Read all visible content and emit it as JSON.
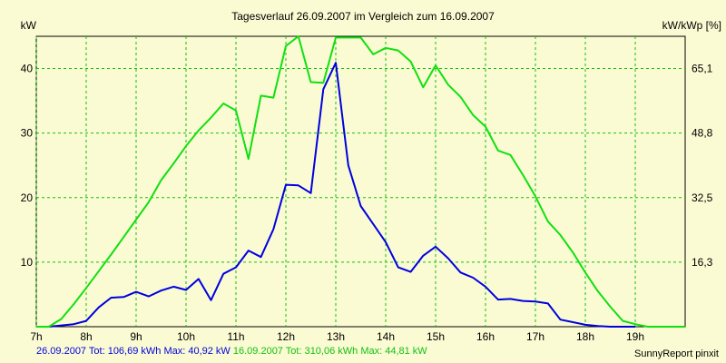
{
  "chart_data": {
    "type": "line",
    "title": "Tagesverlauf 26.09.2007 im Vergleich zum 16.09.2007",
    "ylabel_left": "kW",
    "ylabel_right": "kW/kWp [%]",
    "x_unit": "h",
    "xlim": [
      7,
      20
    ],
    "ylim": [
      0,
      45
    ],
    "x_ticks": [
      "7h",
      "8h",
      "9h",
      "10h",
      "11h",
      "12h",
      "13h",
      "14h",
      "15h",
      "16h",
      "17h",
      "18h",
      "19h"
    ],
    "y_ticks_left": [
      "10",
      "20",
      "30",
      "40"
    ],
    "y_ticks_right": [
      "16,3",
      "32,5",
      "48,8",
      "65,1"
    ],
    "grid": true,
    "series": [
      {
        "name": "26.09.2007",
        "color": "#0000e0",
        "x": [
          7.0,
          7.25,
          7.5,
          7.75,
          8.0,
          8.25,
          8.5,
          8.75,
          9.0,
          9.25,
          9.5,
          9.75,
          10.0,
          10.25,
          10.5,
          10.75,
          11.0,
          11.25,
          11.5,
          11.75,
          12.0,
          12.25,
          12.5,
          12.75,
          13.0,
          13.25,
          13.5,
          13.75,
          14.0,
          14.25,
          14.5,
          14.75,
          15.0,
          15.25,
          15.5,
          15.75,
          16.0,
          16.25,
          16.5,
          16.75,
          17.0,
          17.25,
          17.5,
          17.75,
          18.0,
          18.25,
          18.5,
          18.75,
          19.0
        ],
        "values": [
          0.0,
          0.0,
          0.2,
          0.4,
          0.9,
          3.0,
          4.5,
          4.6,
          5.4,
          4.7,
          5.6,
          6.2,
          5.7,
          7.4,
          4.1,
          8.2,
          9.2,
          11.8,
          10.8,
          15.1,
          22.0,
          21.9,
          20.7,
          36.8,
          40.9,
          25.0,
          18.7,
          15.9,
          13.1,
          9.2,
          8.5,
          11.0,
          12.4,
          10.6,
          8.4,
          7.6,
          6.2,
          4.2,
          4.3,
          4.0,
          3.9,
          3.6,
          1.1,
          0.7,
          0.3,
          0.1,
          0.0,
          0.0,
          0.0
        ]
      },
      {
        "name": "16.09.2007",
        "color": "#10e010",
        "x": [
          7.0,
          7.25,
          7.5,
          7.75,
          8.0,
          8.25,
          8.5,
          8.75,
          9.0,
          9.25,
          9.5,
          9.75,
          10.0,
          10.25,
          10.5,
          10.75,
          11.0,
          11.25,
          11.5,
          11.75,
          12.0,
          12.25,
          12.5,
          12.75,
          13.0,
          13.25,
          13.5,
          13.75,
          14.0,
          14.25,
          14.5,
          14.75,
          15.0,
          15.25,
          15.5,
          15.75,
          16.0,
          16.25,
          16.5,
          16.75,
          17.0,
          17.25,
          17.5,
          17.75,
          18.0,
          18.25,
          18.5,
          18.75,
          19.0,
          19.25,
          19.5,
          19.75,
          20.0
        ],
        "values": [
          0.0,
          0.0,
          1.2,
          3.5,
          6.0,
          8.6,
          11.2,
          13.9,
          16.6,
          19.3,
          22.7,
          25.3,
          28.0,
          30.4,
          32.4,
          34.6,
          33.5,
          26.0,
          35.8,
          35.5,
          43.5,
          45.0,
          37.9,
          37.8,
          44.8,
          44.8,
          44.8,
          42.2,
          43.2,
          42.8,
          41.1,
          37.1,
          40.5,
          37.5,
          35.6,
          32.8,
          31.0,
          27.3,
          26.6,
          23.5,
          20.2,
          16.3,
          14.2,
          11.5,
          8.4,
          5.5,
          3.1,
          0.9,
          0.4,
          0.0,
          0.0,
          0.0,
          0.0
        ]
      }
    ]
  },
  "footer": {
    "day1_text": "26.09.2007 Tot: 106,69 kWh Max: 40,92 kW",
    "day2_text": "16.09.2007 Tot: 310,06 kWh Max: 44,81 kW",
    "brand": "SunnyReport pinxit"
  }
}
